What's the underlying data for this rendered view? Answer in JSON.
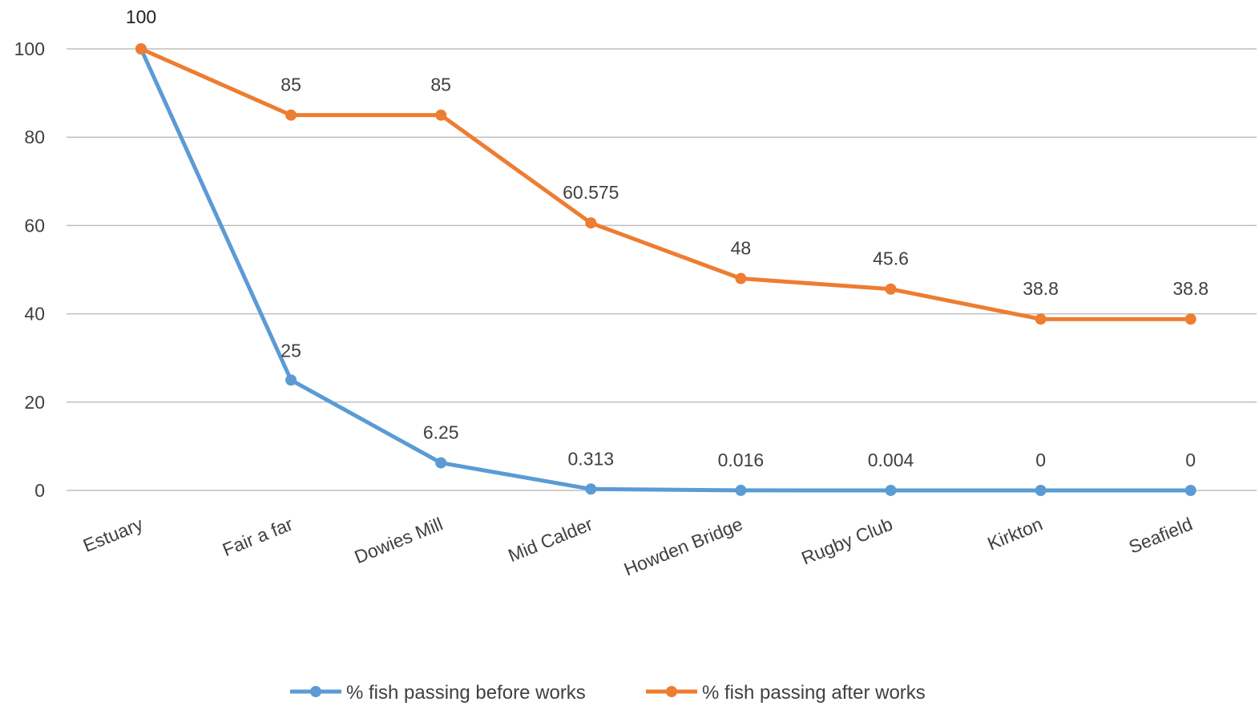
{
  "chart_data": {
    "type": "line",
    "categories": [
      "Estuary",
      "Fair a far",
      "Dowies Mill",
      "Mid Calder",
      "Howden Bridge",
      "Rugby Club",
      "Kirkton",
      "Seafield"
    ],
    "series": [
      {
        "name": "% fish passing before works",
        "color": "#5B9BD5",
        "values": [
          100,
          25,
          6.25,
          0.313,
          0.016,
          0.004,
          0,
          0
        ],
        "labels": [
          "100",
          "25",
          "6.25",
          "0.313",
          "0.016",
          "0.004",
          "0",
          "0"
        ]
      },
      {
        "name": "% fish passing after works",
        "color": "#ED7D31",
        "values": [
          100,
          85,
          85,
          60.575,
          48,
          45.6,
          38.8,
          38.8
        ],
        "labels": [
          "100",
          "85",
          "85",
          "60.575",
          "48",
          "45.6",
          "38.8",
          "38.8"
        ]
      }
    ],
    "y_ticks": [
      "0",
      "20",
      "40",
      "60",
      "80",
      "100"
    ],
    "ylim": [
      0,
      100
    ],
    "grid": true,
    "legend": "bottom"
  }
}
